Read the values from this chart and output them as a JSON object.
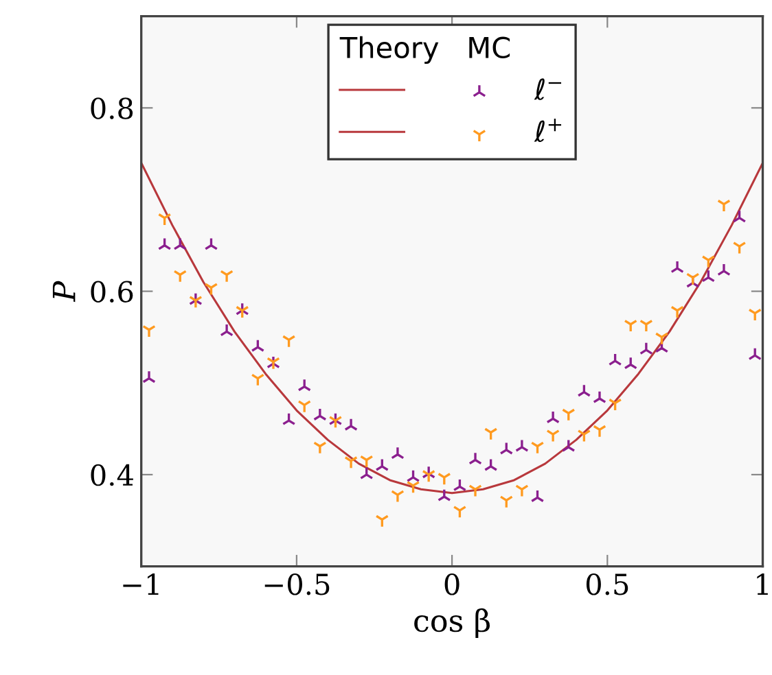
{
  "chart_data": {
    "type": "scatter",
    "xlabel": "cos β",
    "ylabel": "P",
    "legend_title": "Theory   MC",
    "xlim": [
      -1,
      1
    ],
    "ylim": [
      0.3,
      0.9
    ],
    "xticks": [
      {
        "value": -1,
        "label": "−1"
      },
      {
        "value": -0.5,
        "label": "−0.5"
      },
      0,
      0.5,
      1
    ],
    "yticks": [
      0.4,
      0.6,
      0.8
    ],
    "grid": false,
    "legend": "top",
    "series": [
      {
        "type": "line",
        "color": "#b8383c",
        "x": [
          -1,
          -0.9,
          -0.8,
          -0.7,
          -0.6,
          -0.5,
          -0.4,
          -0.3,
          -0.2,
          -0.1,
          0,
          0.1,
          0.2,
          0.3,
          0.4,
          0.5,
          0.6,
          0.7,
          0.8,
          0.9,
          1
        ],
        "values": [
          0.74,
          0.672,
          0.61,
          0.556,
          0.51,
          0.47,
          0.438,
          0.412,
          0.394,
          0.384,
          0.38,
          0.384,
          0.394,
          0.412,
          0.438,
          0.47,
          0.51,
          0.556,
          0.61,
          0.672,
          0.74
        ]
      },
      {
        "name": "ℓ$^{−}$",
        "color": "#8b1f8e",
        "marker": "cross",
        "x": [
          -0.975,
          -0.925,
          -0.875,
          -0.825,
          -0.775,
          -0.725,
          -0.675,
          -0.625,
          -0.575,
          -0.525,
          -0.475,
          -0.425,
          -0.375,
          -0.325,
          -0.275,
          -0.225,
          -0.175,
          -0.125,
          -0.075,
          -0.025,
          0.025,
          0.075,
          0.125,
          0.175,
          0.225,
          0.275,
          0.325,
          0.375,
          0.425,
          0.475,
          0.525,
          0.575,
          0.625,
          0.675,
          0.725,
          0.775,
          0.825,
          0.875,
          0.925,
          0.975
        ],
        "values": [
          0.505,
          0.65,
          0.65,
          0.59,
          0.65,
          0.556,
          0.579,
          0.539,
          0.521,
          0.459,
          0.496,
          0.464,
          0.459,
          0.453,
          0.4,
          0.409,
          0.422,
          0.397,
          0.401,
          0.376,
          0.387,
          0.416,
          0.409,
          0.427,
          0.43,
          0.375,
          0.461,
          0.43,
          0.49,
          0.483,
          0.524,
          0.52,
          0.536,
          0.538,
          0.625,
          0.609,
          0.615,
          0.622,
          0.68,
          0.53
        ]
      },
      {
        "name": "ℓ$^{+}$",
        "color": "#ff9a1f",
        "marker": "cross",
        "x": [
          -0.975,
          -0.925,
          -0.875,
          -0.825,
          -0.775,
          -0.725,
          -0.675,
          -0.625,
          -0.575,
          -0.525,
          -0.475,
          -0.425,
          -0.375,
          -0.325,
          -0.275,
          -0.225,
          -0.175,
          -0.125,
          -0.075,
          -0.025,
          0.025,
          0.075,
          0.125,
          0.175,
          0.225,
          0.275,
          0.325,
          0.375,
          0.425,
          0.475,
          0.525,
          0.575,
          0.625,
          0.675,
          0.725,
          0.775,
          0.825,
          0.875,
          0.925,
          0.975
        ],
        "values": [
          0.558,
          0.68,
          0.618,
          0.59,
          0.604,
          0.618,
          0.579,
          0.505,
          0.523,
          0.547,
          0.476,
          0.431,
          0.459,
          0.415,
          0.416,
          0.351,
          0.378,
          0.388,
          0.4,
          0.397,
          0.361,
          0.384,
          0.446,
          0.372,
          0.384,
          0.431,
          0.444,
          0.467,
          0.444,
          0.449,
          0.478,
          0.564,
          0.564,
          0.55,
          0.579,
          0.615,
          0.634,
          0.695,
          0.649,
          0.576
        ]
      }
    ]
  }
}
